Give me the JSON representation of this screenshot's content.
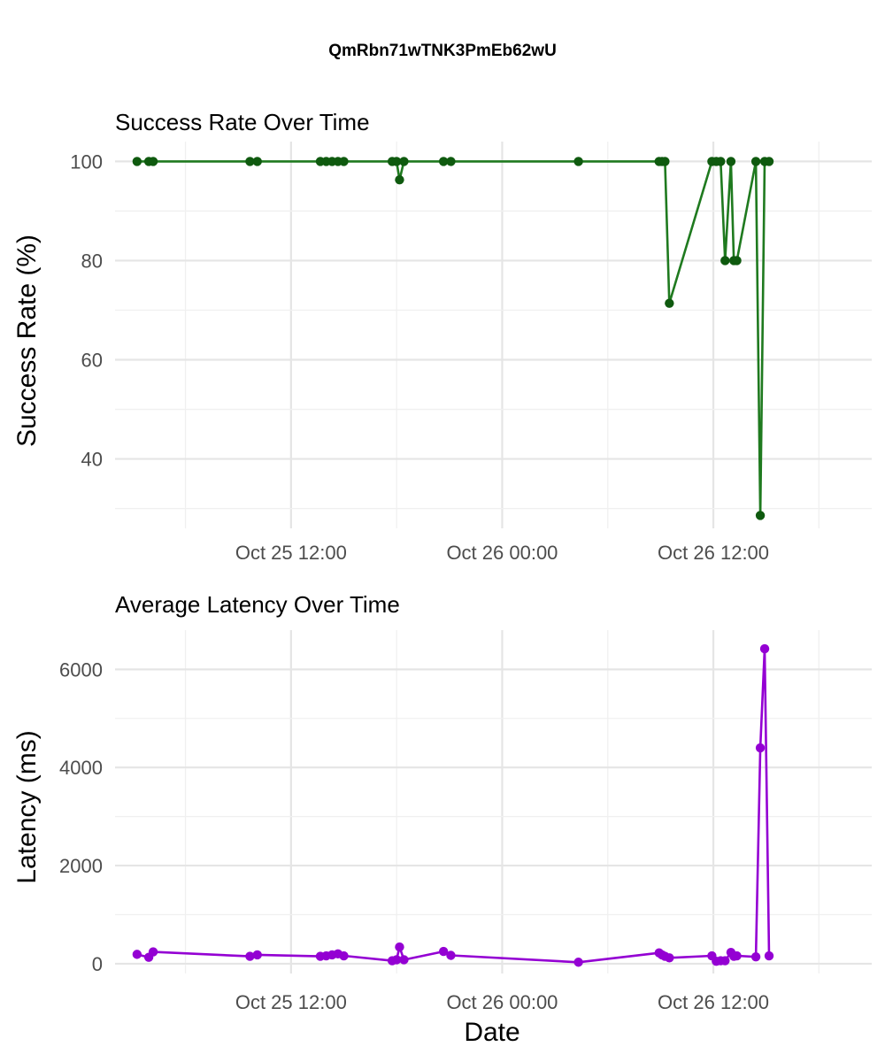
{
  "title": "QmRbn71wTNK3PmEb62wU",
  "xlabel": "Date",
  "x_ticks": [
    "Oct 25 12:00",
    "Oct 26 00:00",
    "Oct 26 12:00"
  ],
  "colors": {
    "success": "#1f7a1f",
    "success_point": "#0f5a0f",
    "latency": "#9400d3",
    "grid": "#e5e5e5",
    "tick_text": "#4d4d4d"
  },
  "chart_data": [
    {
      "type": "line",
      "title": "Success Rate Over Time",
      "xlabel": "",
      "ylabel": "Success Rate (%)",
      "xlim": [
        "2024-10-25 02:00",
        "2024-10-26 21:00"
      ],
      "ylim": [
        26,
        104
      ],
      "yticks": [
        40,
        60,
        80,
        100
      ],
      "grid": true,
      "series": [
        {
          "x": [
            "2024-10-25 03:15",
            "2024-10-25 03:55",
            "2024-10-25 04:10",
            "2024-10-25 09:40",
            "2024-10-25 10:05",
            "2024-10-25 13:40",
            "2024-10-25 14:00",
            "2024-10-25 14:20",
            "2024-10-25 14:40",
            "2024-10-25 15:00",
            "2024-10-25 17:45",
            "2024-10-25 18:00",
            "2024-10-25 18:10",
            "2024-10-25 18:25",
            "2024-10-25 20:40",
            "2024-10-25 21:05",
            "2024-10-26 04:20",
            "2024-10-26 08:55",
            "2024-10-26 09:05",
            "2024-10-26 09:15",
            "2024-10-26 09:30",
            "2024-10-26 11:55",
            "2024-10-26 12:10",
            "2024-10-26 12:25",
            "2024-10-26 12:40",
            "2024-10-26 13:00",
            "2024-10-26 13:10",
            "2024-10-26 13:20",
            "2024-10-26 14:25",
            "2024-10-26 14:40",
            "2024-10-26 14:55",
            "2024-10-26 15:10"
          ],
          "y": [
            100,
            100,
            100,
            100,
            100,
            100,
            100,
            100,
            100,
            100,
            100,
            100,
            96.3,
            100,
            100,
            100,
            100,
            100,
            100,
            100,
            71.4,
            100,
            100,
            100,
            80,
            100,
            80,
            80,
            100,
            28.6,
            100,
            100
          ]
        }
      ]
    },
    {
      "type": "line",
      "title": "Average Latency Over Time",
      "xlabel": "Date",
      "ylabel": "Latency (ms)",
      "xlim": [
        "2024-10-25 02:00",
        "2024-10-26 21:00"
      ],
      "ylim": [
        -200,
        6800
      ],
      "yticks": [
        0,
        2000,
        4000,
        6000
      ],
      "grid": true,
      "series": [
        {
          "x": [
            "2024-10-25 03:15",
            "2024-10-25 03:55",
            "2024-10-25 04:10",
            "2024-10-25 09:40",
            "2024-10-25 10:05",
            "2024-10-25 13:40",
            "2024-10-25 14:00",
            "2024-10-25 14:20",
            "2024-10-25 14:40",
            "2024-10-25 15:00",
            "2024-10-25 17:45",
            "2024-10-25 18:00",
            "2024-10-25 18:10",
            "2024-10-25 18:25",
            "2024-10-25 20:40",
            "2024-10-25 21:05",
            "2024-10-26 04:20",
            "2024-10-26 08:55",
            "2024-10-26 09:05",
            "2024-10-26 09:15",
            "2024-10-26 09:30",
            "2024-10-26 11:55",
            "2024-10-26 12:10",
            "2024-10-26 12:25",
            "2024-10-26 12:40",
            "2024-10-26 13:00",
            "2024-10-26 13:10",
            "2024-10-26 13:20",
            "2024-10-26 14:25",
            "2024-10-26 14:40",
            "2024-10-26 14:55",
            "2024-10-26 15:10"
          ],
          "y": [
            190,
            130,
            240,
            150,
            180,
            150,
            160,
            180,
            200,
            160,
            60,
            80,
            340,
            80,
            250,
            170,
            30,
            220,
            180,
            150,
            120,
            160,
            50,
            60,
            60,
            230,
            150,
            160,
            140,
            4400,
            6420,
            160
          ]
        }
      ]
    }
  ]
}
